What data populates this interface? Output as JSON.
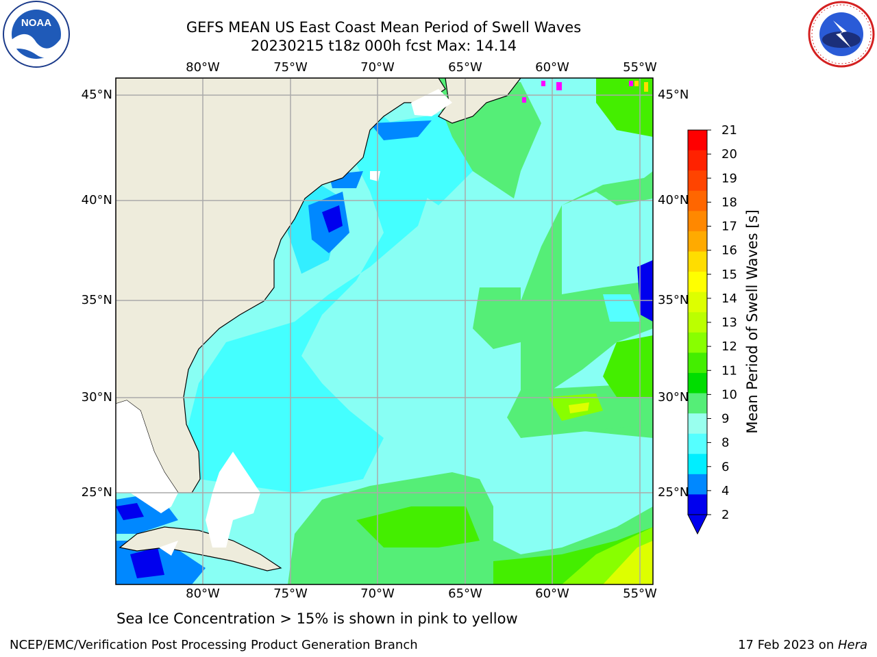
{
  "title": {
    "line1": "GEFS MEAN US East Coast Mean Period of Swell Waves",
    "line2": "20230215 t18z 000h fcst   Max: 14.14"
  },
  "logos": {
    "left": "noaa-logo",
    "left_text": "NOAA",
    "right": "national-weather-service-logo",
    "right_text": "NATIONAL WEATHER SERVICE"
  },
  "map": {
    "projection": "lat-lon",
    "lon_range": [
      -85,
      -54
    ],
    "lat_range": [
      20.5,
      46
    ],
    "x_ticks": [
      "80°W",
      "75°W",
      "70°W",
      "65°W",
      "60°W",
      "55°W"
    ],
    "y_ticks": [
      "45°N",
      "40°N",
      "35°N",
      "30°N",
      "25°N"
    ],
    "land_color": "#eeecdc",
    "grid": true,
    "coastlines": true
  },
  "colorbar": {
    "label": "Mean Period of Swell Waves [s]",
    "ticks": [
      "21",
      "20",
      "19",
      "18",
      "17",
      "16",
      "15",
      "14",
      "13",
      "12",
      "11",
      "10",
      "9",
      "8",
      "6",
      "4",
      "2"
    ],
    "colors": [
      "#ff0000",
      "#ff2200",
      "#ff4400",
      "#ff6600",
      "#ff8800",
      "#ffaa00",
      "#ffdd00",
      "#ffff00",
      "#ddff00",
      "#bbff00",
      "#88ff00",
      "#44ee00",
      "#00dd00",
      "#55ee77",
      "#99ffee",
      "#55ffff",
      "#00eeff",
      "#0088ff",
      "#0000ee"
    ],
    "extend": "min"
  },
  "note": "Sea Ice Concentration > 15% is shown in pink to yellow",
  "footer": {
    "left": "NCEP/EMC/Verification Post Processing Product Generation Branch",
    "right_prefix": "17 Feb 2023 on ",
    "right_host": "Hera"
  }
}
